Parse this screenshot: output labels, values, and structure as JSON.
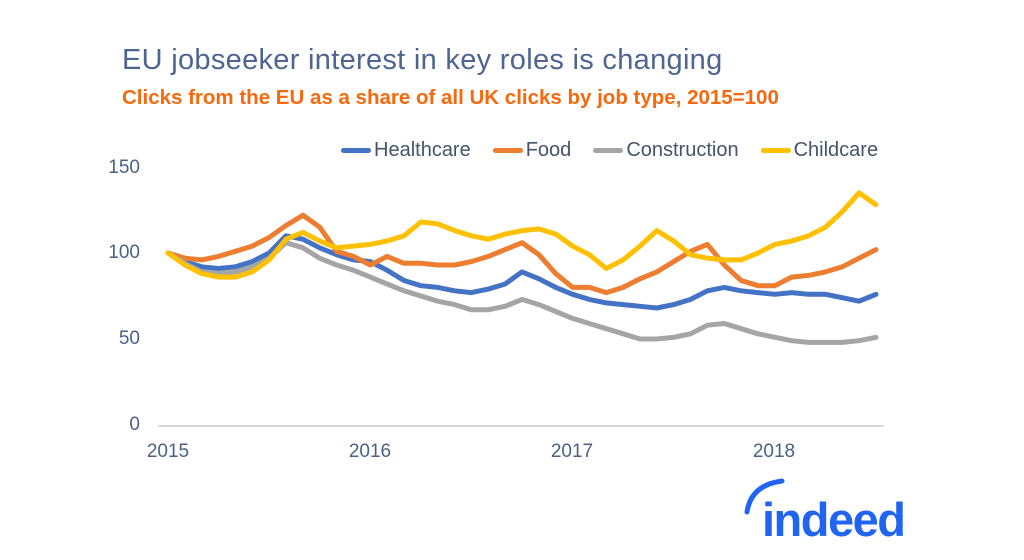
{
  "title": "EU jobseeker interest in key roles is changing",
  "subtitle": "Clicks from the EU as a share of all UK clicks by job type, 2015=100",
  "colors": {
    "title_text": "#4d6590",
    "subtitle_text": "#f8690e",
    "axis_text": "#4a6285",
    "legend_text": "#44546a",
    "axis_line": "#d9d9d9",
    "logo_blue": "#2164f0"
  },
  "logo": {
    "text": "indeed"
  },
  "chart_data": {
    "type": "line",
    "title": "EU jobseeker interest in key roles is changing",
    "subtitle": "Clicks from the EU as a share of all UK clicks by job type, 2015=100",
    "frequency": "monthly",
    "x_start": "2015-01",
    "x_end": "2018-07",
    "x_tick_labels": [
      "2015",
      "2016",
      "2017",
      "2018"
    ],
    "y_tick_labels": [
      "150",
      "100",
      "50",
      "0"
    ],
    "ylim": [
      0,
      150
    ],
    "grid": "baseline-only",
    "legend_position": "top",
    "series": [
      {
        "name": "Healthcare",
        "color": "#4472c4",
        "values": [
          100,
          95,
          92,
          91,
          92,
          95,
          100,
          110,
          108,
          103,
          99,
          96,
          95,
          90,
          84,
          81,
          80,
          78,
          77,
          79,
          82,
          89,
          85,
          80,
          76,
          73,
          71,
          70,
          69,
          68,
          70,
          73,
          78,
          80,
          78,
          77,
          76,
          77,
          76,
          76,
          74,
          72,
          76
        ]
      },
      {
        "name": "Food",
        "color": "#ed7d31",
        "values": [
          100,
          97,
          96,
          98,
          101,
          104,
          109,
          116,
          122,
          115,
          101,
          98,
          93,
          98,
          94,
          94,
          93,
          93,
          95,
          98,
          102,
          106,
          99,
          88,
          80,
          80,
          77,
          80,
          85,
          89,
          95,
          101,
          105,
          93,
          84,
          81,
          81,
          86,
          87,
          89,
          92,
          97,
          102
        ]
      },
      {
        "name": "Construction",
        "color": "#a5a5a5",
        "values": [
          100,
          94,
          89,
          88,
          89,
          92,
          97,
          106,
          103,
          97,
          93,
          90,
          86,
          82,
          78,
          75,
          72,
          70,
          67,
          67,
          69,
          73,
          70,
          66,
          62,
          59,
          56,
          53,
          50,
          50,
          51,
          53,
          58,
          59,
          56,
          53,
          51,
          49,
          48,
          48,
          48,
          49,
          51
        ]
      },
      {
        "name": "Childcare",
        "color": "#ffc000",
        "values": [
          100,
          93,
          88,
          86,
          86,
          89,
          96,
          108,
          112,
          107,
          103,
          104,
          105,
          107,
          110,
          118,
          117,
          113,
          110,
          108,
          111,
          113,
          114,
          111,
          104,
          99,
          91,
          96,
          104,
          113,
          107,
          99,
          97,
          96,
          96,
          100,
          105,
          107,
          110,
          115,
          124,
          135,
          128
        ]
      }
    ]
  }
}
